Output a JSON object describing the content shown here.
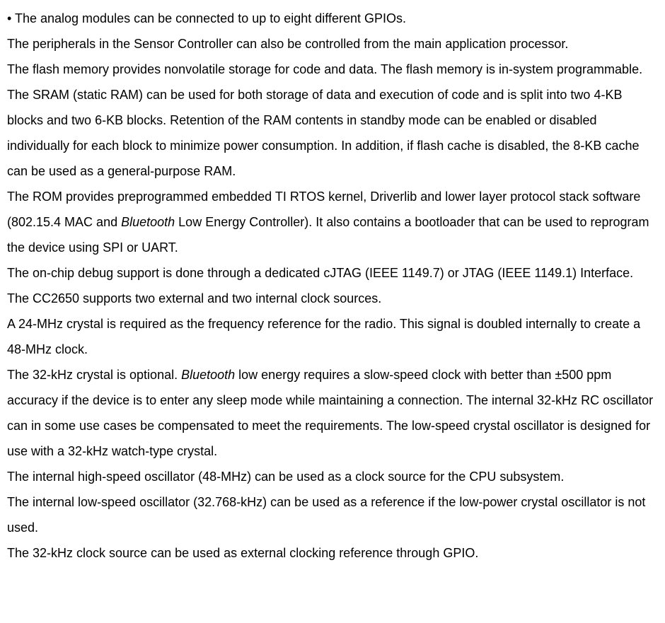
{
  "bullet": "• The analog modules can be connected to up to eight different GPIOs.",
  "p1": "The peripherals in the Sensor Controller can also be controlled from the main application processor.",
  "p2": "The flash memory provides nonvolatile storage for code and data. The flash memory is in-system programmable.",
  "p3": "The SRAM (static RAM) can be used for both storage of data and execution of code and is split into two 4-KB blocks and two 6-KB blocks. Retention of the RAM contents in standby mode can be enabled or disabled individually for each block to minimize power consumption. In addition, if flash cache is disabled, the 8-KB cache can be used as a general-purpose RAM.",
  "p4_before": "The ROM provides preprogrammed embedded TI RTOS kernel, Driverlib and lower layer protocol stack software (802.15.4 MAC and ",
  "p4_italic": "Bluetooth",
  "p4_after": " Low Energy Controller). It also contains a bootloader that can be used to reprogram the device using SPI or UART.",
  "p5": "The on-chip debug support is done through a dedicated cJTAG (IEEE 1149.7) or JTAG (IEEE 1149.1) Interface.",
  "p6": "The CC2650 supports two external and two internal clock sources.",
  "p7": "A 24-MHz crystal is required as the frequency reference for the radio. This signal is doubled internally to create a 48-MHz clock.",
  "p8_before": "The 32-kHz crystal is optional. ",
  "p8_italic": "Bluetooth",
  "p8_after": " low energy requires a slow-speed clock with better than ±500 ppm accuracy if the device is to enter any sleep mode while maintaining a connection. The internal 32-kHz RC oscillator can in some use cases be compensated to meet the requirements. The low-speed crystal oscillator is designed for use with a 32-kHz watch-type crystal.",
  "p9": "The internal high-speed oscillator (48-MHz) can be used as a clock source for the CPU subsystem.",
  "p10": "The internal low-speed oscillator (32.768-kHz) can be used as a reference if the low-power crystal oscillator is not used.",
  "p11": "The 32-kHz clock source can be used as external clocking reference through GPIO."
}
